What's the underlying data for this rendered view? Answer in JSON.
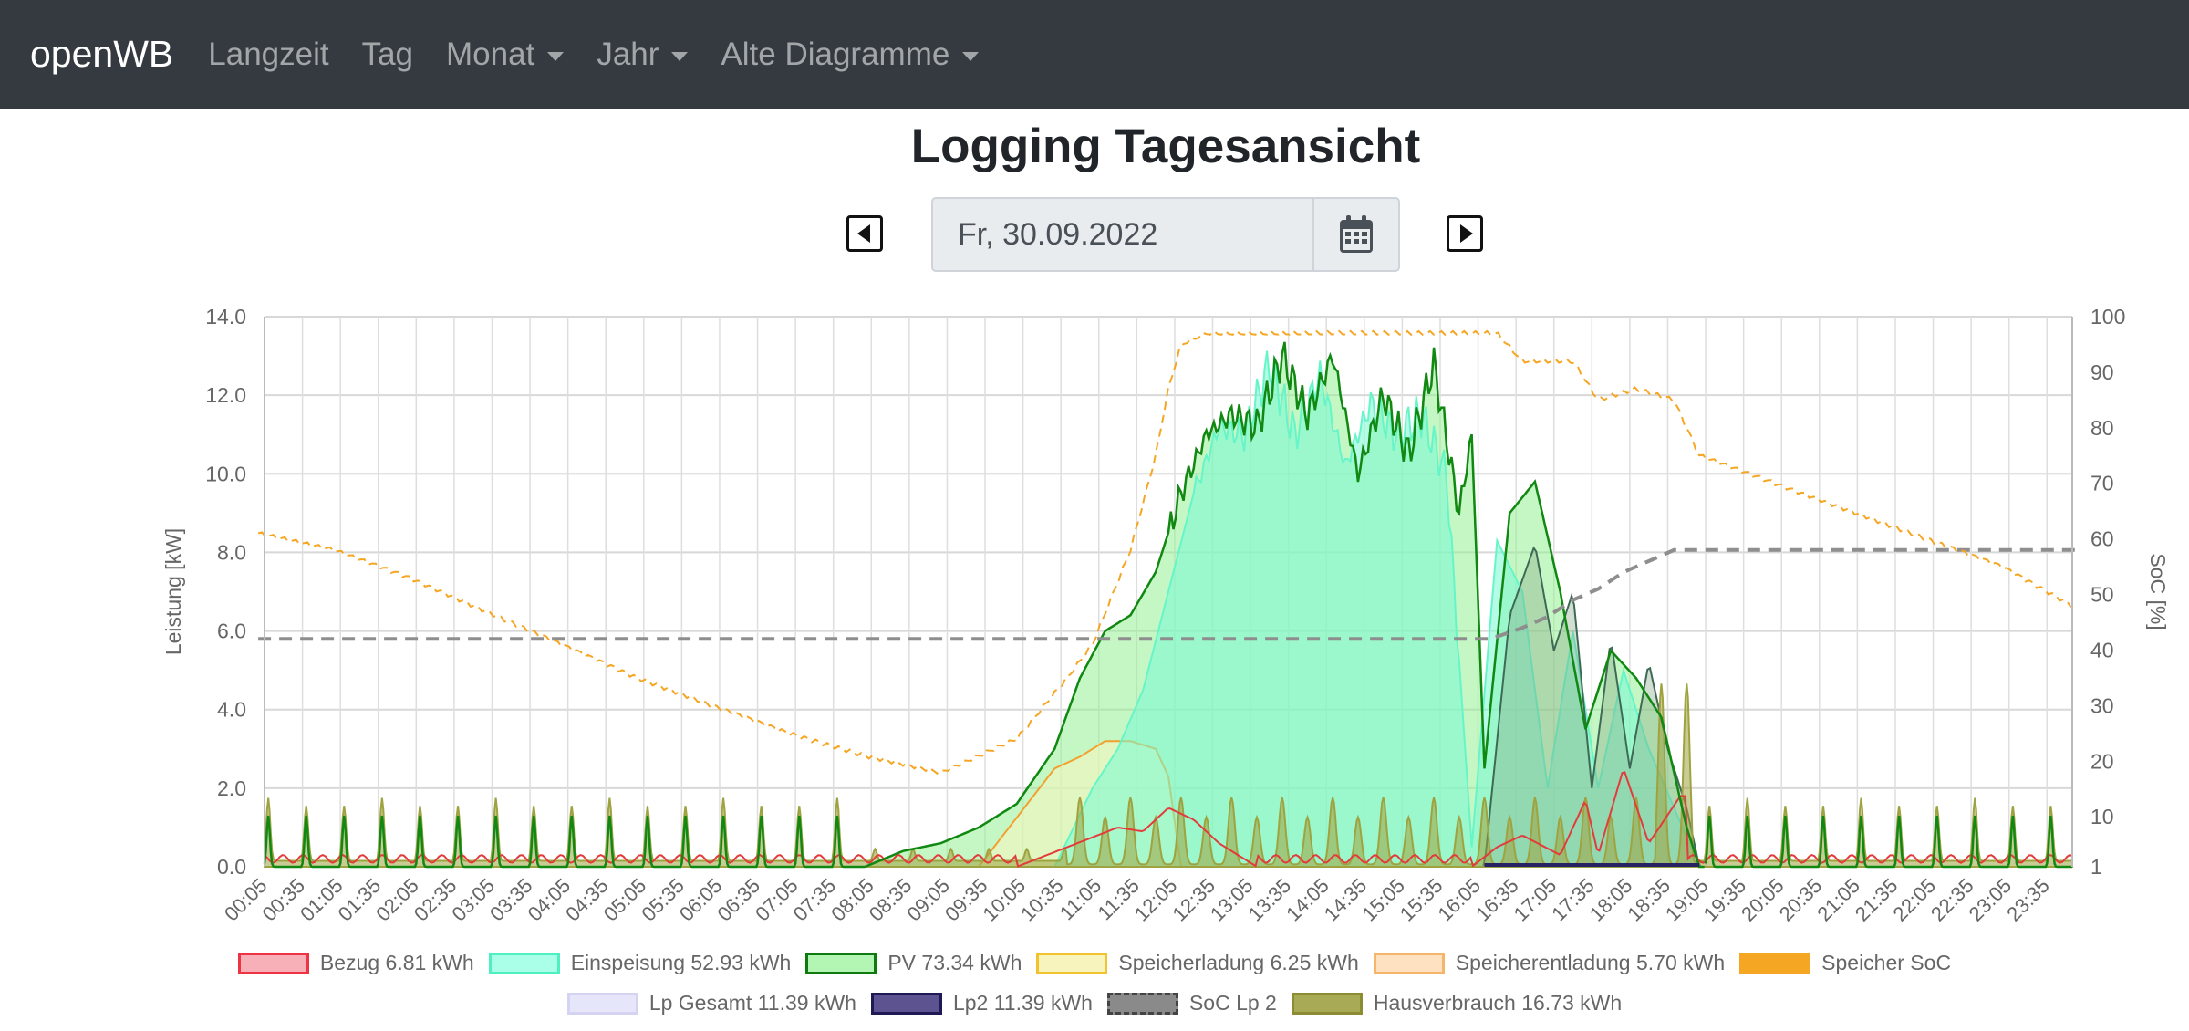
{
  "navbar": {
    "brand": "openWB",
    "items": [
      {
        "label": "Langzeit",
        "dropdown": false
      },
      {
        "label": "Tag",
        "dropdown": false
      },
      {
        "label": "Monat",
        "dropdown": true
      },
      {
        "label": "Jahr",
        "dropdown": true
      },
      {
        "label": "Alte Diagramme",
        "dropdown": true
      }
    ]
  },
  "page": {
    "title": "Logging Tagesansicht",
    "date_value": "Fr, 30.09.2022"
  },
  "icons": {
    "prev": "caret-left-square-icon",
    "next": "caret-right-square-icon",
    "calendar": "calendar-icon"
  },
  "chart_data": {
    "type": "area",
    "ylabel_left": "Leistung [kW]",
    "ylabel_right": "SoC [%]",
    "ylim_left": [
      0,
      14
    ],
    "yticks_left": [
      "0.0",
      "2.0",
      "4.0",
      "6.0",
      "8.0",
      "10.0",
      "12.0",
      "14.0"
    ],
    "ylim_right": [
      1,
      100
    ],
    "yticks_right": [
      "1",
      "10",
      "20",
      "30",
      "40",
      "50",
      "60",
      "70",
      "80",
      "90",
      "100"
    ],
    "grid": true,
    "x_ticks": [
      "00:05",
      "00:35",
      "01:05",
      "01:35",
      "02:05",
      "02:35",
      "03:05",
      "03:35",
      "04:05",
      "04:35",
      "05:05",
      "05:35",
      "06:05",
      "06:35",
      "07:05",
      "07:35",
      "08:05",
      "08:35",
      "09:05",
      "09:35",
      "10:05",
      "10:35",
      "11:05",
      "11:35",
      "12:05",
      "12:35",
      "13:05",
      "13:35",
      "14:05",
      "14:35",
      "15:05",
      "15:35",
      "16:05",
      "16:35",
      "17:05",
      "17:35",
      "18:05",
      "18:35",
      "19:05",
      "19:35",
      "20:05",
      "20:35",
      "21:05",
      "21:35",
      "22:05",
      "22:35",
      "23:05",
      "23:35"
    ],
    "pv_kw": {
      "x": [
        "08:00",
        "08:30",
        "09:00",
        "09:30",
        "10:00",
        "10:30",
        "10:50",
        "11:10",
        "11:30",
        "11:50",
        "12:10",
        "12:30",
        "12:50",
        "13:10",
        "13:30",
        "13:50",
        "14:10",
        "14:30",
        "14:50",
        "15:10",
        "15:30",
        "15:50",
        "16:00",
        "16:10",
        "16:30",
        "16:50",
        "17:10",
        "17:30",
        "17:50",
        "18:10",
        "18:30",
        "18:50",
        "19:00"
      ],
      "y": [
        0.0,
        0.4,
        0.6,
        1.0,
        1.6,
        3.0,
        4.8,
        6.0,
        6.4,
        7.5,
        9.5,
        11.0,
        11.5,
        11.2,
        13.0,
        11.5,
        13.0,
        10.0,
        12.0,
        10.5,
        12.8,
        9.0,
        11.0,
        2.5,
        9.0,
        9.8,
        7.0,
        3.5,
        5.5,
        4.8,
        3.8,
        1.0,
        0.0
      ]
    },
    "einspeisung_kw": {
      "x": [
        "10:30",
        "11:00",
        "11:20",
        "11:40",
        "12:00",
        "12:20",
        "12:40",
        "13:00",
        "13:20",
        "13:40",
        "14:00",
        "14:20",
        "14:40",
        "15:00",
        "15:20",
        "15:40",
        "16:00",
        "16:20",
        "16:40",
        "17:00",
        "17:20",
        "17:40",
        "18:00",
        "18:20",
        "18:40",
        "19:00"
      ],
      "y": [
        0.0,
        2.0,
        3.0,
        4.5,
        7.0,
        9.5,
        11.2,
        11.0,
        12.8,
        11.0,
        12.5,
        10.2,
        11.8,
        11.0,
        11.5,
        10.0,
        0.5,
        8.3,
        7.0,
        2.0,
        6.0,
        2.0,
        5.0,
        3.0,
        1.5,
        0.0
      ]
    },
    "speicher_ladung_kw": {
      "x": [
        "09:30",
        "10:30",
        "10:50",
        "11:10",
        "11:30",
        "11:50",
        "12:00",
        "12:10"
      ],
      "y": [
        0.0,
        2.5,
        2.8,
        3.2,
        3.2,
        3.0,
        2.3,
        0.0
      ]
    },
    "hausverbrauch_kw": {
      "night_baseline": 0.3,
      "night_peaks": [
        1.2,
        1.6
      ],
      "day_peaks": [
        0.8,
        1.7
      ],
      "max": 4.6
    },
    "soc_lp2_percent": {
      "x": [
        "00:00",
        "16:15",
        "16:40",
        "17:00",
        "17:20",
        "17:40",
        "18:00",
        "18:20",
        "18:40",
        "19:00",
        "24:00"
      ],
      "y": [
        42,
        42,
        44,
        46,
        49,
        51,
        54,
        56,
        58,
        58,
        58
      ]
    },
    "speicher_soc_percent": {
      "x": [
        "00:00",
        "01:00",
        "02:00",
        "03:00",
        "04:00",
        "05:00",
        "06:00",
        "07:00",
        "08:00",
        "09:00",
        "10:00",
        "10:40",
        "11:00",
        "11:30",
        "11:50",
        "12:00",
        "12:10",
        "12:30",
        "13:30",
        "15:00",
        "16:20",
        "16:40",
        "17:20",
        "17:40",
        "18:10",
        "18:40",
        "19:00",
        "20:00",
        "21:00",
        "22:00",
        "23:00",
        "23:55"
      ],
      "y": [
        61,
        58,
        53,
        47,
        41,
        35,
        30,
        25,
        21,
        18,
        24,
        35,
        41,
        58,
        75,
        87,
        95,
        97,
        97,
        97,
        97,
        92,
        92,
        85,
        87,
        85,
        75,
        70,
        65,
        60,
        55,
        48
      ]
    },
    "legend": [
      {
        "label": "Bezug 6.81 kWh",
        "fill": "#f8b0b8",
        "border": "#ee3344",
        "dashed": false
      },
      {
        "label": "Einspeisung 52.93 kWh",
        "fill": "#a9ffe8",
        "border": "#4eefc0",
        "dashed": false
      },
      {
        "label": "PV 73.34 kWh",
        "fill": "#b3f5b3",
        "border": "#0f7a0f",
        "dashed": false
      },
      {
        "label": "Speicherladung 6.25 kWh",
        "fill": "#f7f5bd",
        "border": "#f2c22f",
        "dashed": false
      },
      {
        "label": "Speicherentladung 5.70 kWh",
        "fill": "#fde1c0",
        "border": "#f5b56a",
        "dashed": false
      },
      {
        "label": "Speicher SoC",
        "fill": "#f5a623",
        "border": "#f5a623",
        "dashed": true
      },
      {
        "label": "Lp Gesamt 11.39 kWh",
        "fill": "#e6e6fa",
        "border": "#d4d4f2",
        "dashed": false
      },
      {
        "label": "Lp2 11.39 kWh",
        "fill": "#5c5390",
        "border": "#1f1a55",
        "dashed": false
      },
      {
        "label": "SoC Lp 2",
        "fill": "#8a8a8a",
        "border": "#444444",
        "dashed": true
      },
      {
        "label": "Hausverbrauch 16.73 kWh",
        "fill": "#a9aa56",
        "border": "#8b8c34",
        "dashed": false
      }
    ],
    "colors": {
      "pv": "#118811",
      "einspeisung": "#66f5c8",
      "hausverbrauch": "#9ea340",
      "bezug": "#e33b3b",
      "speicher_soc": "#f5a623",
      "soc_lp2": "#8e8e8e",
      "lp2": "#262264"
    }
  }
}
